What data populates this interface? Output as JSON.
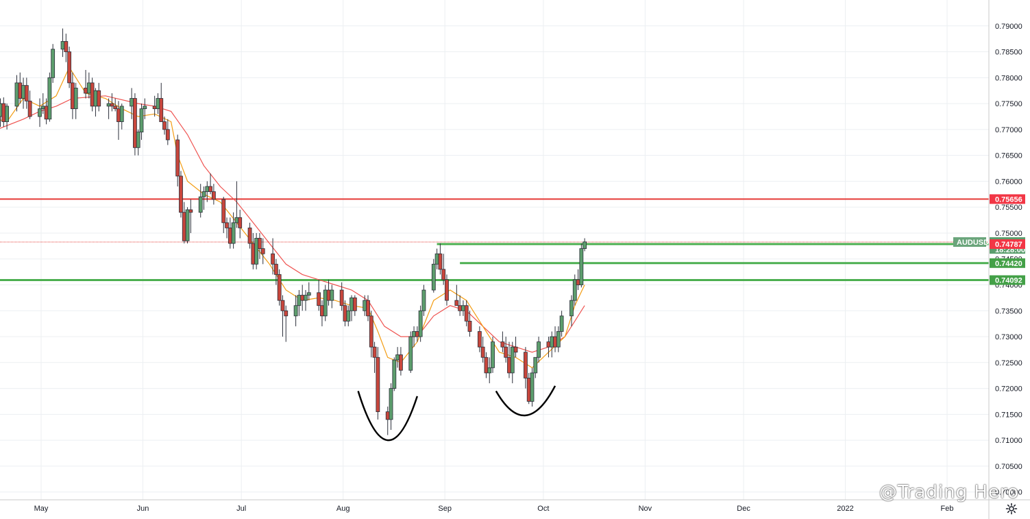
{
  "watermark": "@Trading Hero",
  "symbol": "AUDUSD",
  "countdown": "18:28:00",
  "chart_data": {
    "type": "candlestick",
    "ylim": [
      0.6985,
      0.795
    ],
    "y_ticks": [
      "0.79000",
      "0.78500",
      "0.78000",
      "0.77500",
      "0.77000",
      "0.76500",
      "0.76000",
      "0.75500",
      "0.75000",
      "0.74500",
      "0.74000",
      "0.73500",
      "0.73000",
      "0.72500",
      "0.72000",
      "0.71500",
      "0.71000",
      "0.70500",
      "0.70000"
    ],
    "x_labels": [
      {
        "label": "May",
        "day": 0
      },
      {
        "label": "Jun",
        "day": 31
      },
      {
        "label": "Jul",
        "day": 61
      },
      {
        "label": "Aug",
        "day": 92
      },
      {
        "label": "Sep",
        "day": 123
      },
      {
        "label": "Oct",
        "day": 153
      },
      {
        "label": "Nov",
        "day": 184
      },
      {
        "label": "Dec",
        "day": 214
      },
      {
        "label": "2022",
        "day": 245
      },
      {
        "label": "Feb",
        "day": 276
      }
    ],
    "horizontal_levels": [
      {
        "name": "resistance",
        "value": 0.75656,
        "label": "0.75656",
        "color": "#e53935",
        "style": "solid"
      },
      {
        "name": "last-price",
        "value": 0.74827,
        "label": "0.74827",
        "color": "#e53935",
        "style": "dotted"
      },
      {
        "name": "support-1",
        "value": 0.74787,
        "label": "0.74787",
        "color": "#4caf50",
        "style": "solid",
        "from_day": 121
      },
      {
        "name": "support-2",
        "value": 0.7442,
        "label": "0.74420",
        "color": "#4caf50",
        "style": "solid",
        "from_day": 128
      },
      {
        "name": "support-3",
        "value": 0.74092,
        "label": "0.74092",
        "color": "#4caf50",
        "style": "solid"
      }
    ],
    "tag_colors": {
      "red": "#f23645",
      "green": "#43a047",
      "symbol": "#6aa57b",
      "countdown": "#5b9e6e"
    },
    "candles": [
      [
        -13,
        0.7745,
        0.776,
        0.7715,
        0.7725
      ],
      [
        -12,
        0.7725,
        0.776,
        0.7705,
        0.775
      ],
      [
        -11,
        0.775,
        0.7762,
        0.7705,
        0.7715
      ],
      [
        -10,
        0.7715,
        0.775,
        0.77,
        0.7745
      ],
      [
        -7,
        0.7745,
        0.7805,
        0.7735,
        0.779
      ],
      [
        -6,
        0.779,
        0.781,
        0.775,
        0.776
      ],
      [
        -5,
        0.776,
        0.78,
        0.774,
        0.7785
      ],
      [
        -4,
        0.7785,
        0.78,
        0.774,
        0.7755
      ],
      [
        -3,
        0.7755,
        0.7775,
        0.772,
        0.7725
      ],
      [
        0,
        0.7725,
        0.776,
        0.7705,
        0.774
      ],
      [
        1,
        0.774,
        0.777,
        0.773,
        0.7745
      ],
      [
        2,
        0.7745,
        0.776,
        0.771,
        0.772
      ],
      [
        3,
        0.772,
        0.781,
        0.7715,
        0.78
      ],
      [
        4,
        0.78,
        0.7865,
        0.779,
        0.7855
      ],
      [
        7,
        0.7855,
        0.7895,
        0.784,
        0.787
      ],
      [
        8,
        0.787,
        0.7885,
        0.783,
        0.785
      ],
      [
        9,
        0.785,
        0.786,
        0.778,
        0.779
      ],
      [
        10,
        0.779,
        0.781,
        0.772,
        0.774
      ],
      [
        11,
        0.774,
        0.779,
        0.772,
        0.778
      ],
      [
        14,
        0.778,
        0.7815,
        0.776,
        0.777
      ],
      [
        15,
        0.777,
        0.781,
        0.776,
        0.779
      ],
      [
        16,
        0.779,
        0.78,
        0.7735,
        0.7745
      ],
      [
        17,
        0.7745,
        0.778,
        0.7725,
        0.7775
      ],
      [
        18,
        0.7775,
        0.779,
        0.7735,
        0.7745
      ],
      [
        21,
        0.7745,
        0.776,
        0.772,
        0.775
      ],
      [
        22,
        0.775,
        0.777,
        0.7735,
        0.7745
      ],
      [
        23,
        0.7745,
        0.776,
        0.7735,
        0.774
      ],
      [
        24,
        0.774,
        0.7755,
        0.768,
        0.7715
      ],
      [
        25,
        0.7715,
        0.775,
        0.77,
        0.7745
      ],
      [
        28,
        0.7745,
        0.778,
        0.772,
        0.776
      ],
      [
        29,
        0.776,
        0.777,
        0.765,
        0.7665
      ],
      [
        30,
        0.7665,
        0.77,
        0.765,
        0.7695
      ],
      [
        31,
        0.7695,
        0.775,
        0.768,
        0.774
      ],
      [
        32,
        0.774,
        0.776,
        0.772,
        0.7745
      ],
      [
        35,
        0.7745,
        0.7765,
        0.7725,
        0.774
      ],
      [
        36,
        0.774,
        0.777,
        0.773,
        0.776
      ],
      [
        37,
        0.776,
        0.779,
        0.772,
        0.7715
      ],
      [
        38,
        0.7715,
        0.7725,
        0.769,
        0.77
      ],
      [
        39,
        0.77,
        0.772,
        0.767,
        0.768
      ],
      [
        42,
        0.768,
        0.769,
        0.759,
        0.761
      ],
      [
        43,
        0.761,
        0.762,
        0.753,
        0.754
      ],
      [
        44,
        0.754,
        0.756,
        0.748,
        0.7485
      ],
      [
        45,
        0.7485,
        0.755,
        0.748,
        0.7545
      ],
      [
        46,
        0.7545,
        0.7565,
        0.75,
        0.754
      ],
      [
        49,
        0.754,
        0.7595,
        0.753,
        0.757
      ],
      [
        50,
        0.757,
        0.759,
        0.7545,
        0.758
      ],
      [
        51,
        0.758,
        0.76,
        0.756,
        0.759
      ],
      [
        52,
        0.759,
        0.7615,
        0.7575,
        0.758
      ],
      [
        53,
        0.758,
        0.7595,
        0.7555,
        0.7565
      ],
      [
        56,
        0.7565,
        0.757,
        0.75,
        0.752
      ],
      [
        57,
        0.752,
        0.753,
        0.749,
        0.751
      ],
      [
        58,
        0.751,
        0.753,
        0.747,
        0.748
      ],
      [
        59,
        0.748,
        0.754,
        0.747,
        0.752
      ],
      [
        60,
        0.752,
        0.76,
        0.751,
        0.753
      ],
      [
        61,
        0.753,
        0.7545,
        0.749,
        0.751
      ],
      [
        64,
        0.751,
        0.752,
        0.747,
        0.748
      ],
      [
        65,
        0.748,
        0.75,
        0.743,
        0.744
      ],
      [
        66,
        0.744,
        0.75,
        0.743,
        0.749
      ],
      [
        67,
        0.749,
        0.75,
        0.745,
        0.747
      ],
      [
        68,
        0.747,
        0.749,
        0.744,
        0.746
      ],
      [
        71,
        0.746,
        0.749,
        0.742,
        0.744
      ],
      [
        72,
        0.744,
        0.745,
        0.74,
        0.742
      ],
      [
        73,
        0.742,
        0.743,
        0.736,
        0.737
      ],
      [
        74,
        0.737,
        0.738,
        0.73,
        0.735
      ],
      [
        75,
        0.735,
        0.736,
        0.729,
        0.734
      ],
      [
        78,
        0.734,
        0.738,
        0.732,
        0.736
      ],
      [
        79,
        0.736,
        0.739,
        0.734,
        0.738
      ],
      [
        80,
        0.738,
        0.74,
        0.735,
        0.737
      ],
      [
        81,
        0.737,
        0.739,
        0.735,
        0.738
      ],
      [
        82,
        0.738,
        0.7405,
        0.737,
        0.7385
      ],
      [
        85,
        0.7385,
        0.741,
        0.735,
        0.736
      ],
      [
        86,
        0.736,
        0.737,
        0.732,
        0.734
      ],
      [
        87,
        0.734,
        0.74,
        0.733,
        0.739
      ],
      [
        88,
        0.739,
        0.741,
        0.736,
        0.737
      ],
      [
        89,
        0.737,
        0.74,
        0.7355,
        0.739
      ],
      [
        92,
        0.739,
        0.7405,
        0.735,
        0.736
      ],
      [
        93,
        0.736,
        0.737,
        0.732,
        0.733
      ],
      [
        94,
        0.733,
        0.736,
        0.732,
        0.735
      ],
      [
        95,
        0.735,
        0.738,
        0.733,
        0.7375
      ],
      [
        96,
        0.7375,
        0.738,
        0.734,
        0.735
      ],
      [
        99,
        0.735,
        0.738,
        0.734,
        0.737
      ],
      [
        100,
        0.737,
        0.738,
        0.733,
        0.734
      ],
      [
        101,
        0.734,
        0.735,
        0.726,
        0.728
      ],
      [
        102,
        0.728,
        0.729,
        0.723,
        0.726
      ],
      [
        103,
        0.726,
        0.728,
        0.714,
        0.7155
      ],
      [
        106,
        0.7155,
        0.7165,
        0.711,
        0.714
      ],
      [
        107,
        0.714,
        0.721,
        0.712,
        0.72
      ],
      [
        108,
        0.72,
        0.726,
        0.7195,
        0.7255
      ],
      [
        109,
        0.7255,
        0.728,
        0.724,
        0.7265
      ],
      [
        110,
        0.7265,
        0.728,
        0.7225,
        0.7235
      ],
      [
        113,
        0.7235,
        0.731,
        0.723,
        0.73
      ],
      [
        114,
        0.73,
        0.732,
        0.728,
        0.731
      ],
      [
        115,
        0.731,
        0.732,
        0.729,
        0.73
      ],
      [
        116,
        0.73,
        0.736,
        0.729,
        0.735
      ],
      [
        117,
        0.735,
        0.74,
        0.734,
        0.739
      ],
      [
        120,
        0.739,
        0.745,
        0.7385,
        0.744
      ],
      [
        121,
        0.744,
        0.747,
        0.743,
        0.746
      ],
      [
        122,
        0.746,
        0.748,
        0.742,
        0.743
      ],
      [
        123,
        0.743,
        0.746,
        0.74,
        0.741
      ],
      [
        124,
        0.741,
        0.742,
        0.736,
        0.737
      ],
      [
        127,
        0.737,
        0.74,
        0.736,
        0.736
      ],
      [
        128,
        0.736,
        0.738,
        0.734,
        0.735
      ],
      [
        129,
        0.735,
        0.737,
        0.734,
        0.736
      ],
      [
        130,
        0.736,
        0.737,
        0.732,
        0.733
      ],
      [
        131,
        0.733,
        0.735,
        0.73,
        0.731
      ],
      [
        134,
        0.731,
        0.732,
        0.727,
        0.728
      ],
      [
        135,
        0.728,
        0.73,
        0.725,
        0.726
      ],
      [
        136,
        0.726,
        0.727,
        0.722,
        0.723
      ],
      [
        137,
        0.723,
        0.726,
        0.721,
        0.724
      ],
      [
        138,
        0.724,
        0.73,
        0.723,
        0.729
      ],
      [
        141,
        0.729,
        0.731,
        0.727,
        0.728
      ],
      [
        142,
        0.728,
        0.73,
        0.725,
        0.726
      ],
      [
        143,
        0.726,
        0.729,
        0.722,
        0.723
      ],
      [
        144,
        0.723,
        0.729,
        0.721,
        0.728
      ],
      [
        145,
        0.728,
        0.73,
        0.726,
        0.727
      ],
      [
        148,
        0.727,
        0.728,
        0.72,
        0.722
      ],
      [
        149,
        0.722,
        0.723,
        0.717,
        0.7175
      ],
      [
        150,
        0.7175,
        0.724,
        0.7165,
        0.723
      ],
      [
        151,
        0.723,
        0.726,
        0.722,
        0.726
      ],
      [
        152,
        0.726,
        0.73,
        0.725,
        0.729
      ],
      [
        155,
        0.729,
        0.73,
        0.726,
        0.728
      ],
      [
        156,
        0.728,
        0.731,
        0.726,
        0.73
      ],
      [
        157,
        0.73,
        0.732,
        0.727,
        0.728
      ],
      [
        158,
        0.728,
        0.732,
        0.727,
        0.731
      ],
      [
        159,
        0.731,
        0.735,
        0.73,
        0.734
      ],
      [
        162,
        0.734,
        0.738,
        0.732,
        0.737
      ],
      [
        163,
        0.737,
        0.742,
        0.736,
        0.741
      ],
      [
        164,
        0.741,
        0.743,
        0.739,
        0.74
      ],
      [
        165,
        0.74,
        0.748,
        0.7395,
        0.747
      ],
      [
        166,
        0.747,
        0.749,
        0.7465,
        0.7483
      ]
    ],
    "sma_orange": [
      [
        -13,
        0.772
      ],
      [
        -10,
        0.7715
      ],
      [
        -5,
        0.776
      ],
      [
        0,
        0.7745
      ],
      [
        5,
        0.7765
      ],
      [
        9,
        0.782
      ],
      [
        14,
        0.777
      ],
      [
        20,
        0.776
      ],
      [
        25,
        0.774
      ],
      [
        30,
        0.7725
      ],
      [
        35,
        0.773
      ],
      [
        40,
        0.7715
      ],
      [
        42,
        0.765
      ],
      [
        45,
        0.76
      ],
      [
        50,
        0.7575
      ],
      [
        55,
        0.756
      ],
      [
        60,
        0.752
      ],
      [
        65,
        0.748
      ],
      [
        70,
        0.744
      ],
      [
        75,
        0.739
      ],
      [
        80,
        0.737
      ],
      [
        85,
        0.7375
      ],
      [
        90,
        0.737
      ],
      [
        95,
        0.736
      ],
      [
        100,
        0.7355
      ],
      [
        103,
        0.731
      ],
      [
        106,
        0.726
      ],
      [
        110,
        0.725
      ],
      [
        115,
        0.729
      ],
      [
        120,
        0.737
      ],
      [
        125,
        0.739
      ],
      [
        130,
        0.737
      ],
      [
        135,
        0.732
      ],
      [
        140,
        0.727
      ],
      [
        145,
        0.726
      ],
      [
        150,
        0.724
      ],
      [
        155,
        0.727
      ],
      [
        160,
        0.73
      ],
      [
        163,
        0.736
      ],
      [
        166,
        0.74
      ]
    ],
    "sma_red": [
      [
        -13,
        0.77
      ],
      [
        -5,
        0.772
      ],
      [
        0,
        0.7735
      ],
      [
        5,
        0.7745
      ],
      [
        10,
        0.776
      ],
      [
        20,
        0.7765
      ],
      [
        30,
        0.775
      ],
      [
        35,
        0.7745
      ],
      [
        40,
        0.7735
      ],
      [
        45,
        0.769
      ],
      [
        50,
        0.763
      ],
      [
        55,
        0.759
      ],
      [
        60,
        0.756
      ],
      [
        65,
        0.752
      ],
      [
        70,
        0.748
      ],
      [
        75,
        0.744
      ],
      [
        80,
        0.742
      ],
      [
        85,
        0.741
      ],
      [
        90,
        0.74
      ],
      [
        95,
        0.739
      ],
      [
        100,
        0.737
      ],
      [
        105,
        0.732
      ],
      [
        110,
        0.73
      ],
      [
        115,
        0.73
      ],
      [
        120,
        0.734
      ],
      [
        125,
        0.736
      ],
      [
        130,
        0.735
      ],
      [
        135,
        0.732
      ],
      [
        140,
        0.729
      ],
      [
        145,
        0.728
      ],
      [
        150,
        0.727
      ],
      [
        155,
        0.728
      ],
      [
        160,
        0.73
      ],
      [
        163,
        0.733
      ],
      [
        166,
        0.736
      ]
    ],
    "arcs": [
      {
        "name": "left-bottom",
        "points": [
          [
            97,
            0.7195
          ],
          [
            106,
            0.71
          ],
          [
            115,
            0.7185
          ]
        ]
      },
      {
        "name": "right-bottom",
        "points": [
          [
            139,
            0.7195
          ],
          [
            148,
            0.7148
          ],
          [
            157,
            0.7205
          ]
        ]
      }
    ]
  }
}
